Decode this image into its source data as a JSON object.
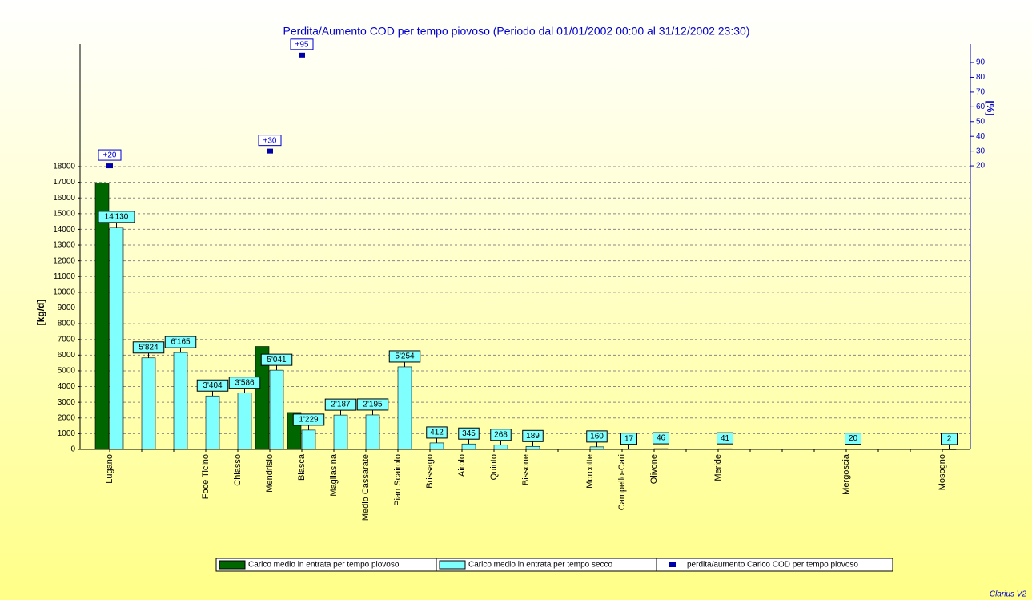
{
  "chart_data": {
    "type": "bar",
    "title": "Perdita/Aumento COD per tempo piovoso (Periodo dal 01/01/2002 00:00 al 31/12/2002 23:30)",
    "y_label": "[kg/d]",
    "y2_label": "[%]",
    "footer": "Clarius V2",
    "categories": [
      "Lugano",
      null,
      null,
      "Foce Ticino",
      "Chiasso",
      "Mendrisio",
      "Biasca",
      "Magliasina",
      "Medio Cassarate",
      "Pian Scairolo",
      "Brissago",
      "Airolo",
      "Quinto",
      "Bissone",
      null,
      "Morcotte",
      "Campello-Cari",
      "Olivone",
      null,
      "Meride",
      null,
      null,
      null,
      "Mergoscia",
      null,
      null,
      "Mosogno"
    ],
    "series": [
      {
        "name": "Carico medio in entrata per tempo piovoso",
        "color": "#006600",
        "values": [
          16950,
          null,
          null,
          null,
          null,
          6550,
          2350,
          null,
          null,
          null,
          null,
          null,
          null,
          null,
          null,
          null,
          null,
          null,
          null,
          null,
          null,
          null,
          null,
          null,
          null,
          null,
          null
        ]
      },
      {
        "name": "Carico medio in entrata per tempo secco",
        "color": "#80ffff",
        "values": [
          14130,
          5824,
          6165,
          3404,
          3586,
          5041,
          1229,
          2187,
          2195,
          5254,
          412,
          345,
          268,
          189,
          null,
          160,
          17,
          46,
          null,
          41,
          null,
          null,
          null,
          20,
          null,
          null,
          2
        ],
        "value_labels": [
          "14'130",
          "5'824",
          "6'165",
          "3'404",
          "3'586",
          "5'041",
          "1'229",
          "2'187",
          "2'195",
          "5'254",
          "412",
          "345",
          "268",
          "189",
          null,
          "160",
          "17",
          "46",
          null,
          "41",
          null,
          null,
          null,
          "20",
          null,
          null,
          "2"
        ]
      },
      {
        "name": "perdita/aumento Carico COD per tempo piovoso",
        "color": "#0000aa",
        "axis": "y2",
        "values": [
          20,
          null,
          null,
          null,
          null,
          30,
          95,
          null,
          null,
          null,
          null,
          null,
          null,
          null,
          null,
          null,
          null,
          null,
          null,
          null,
          null,
          null,
          null,
          null,
          null,
          null,
          null
        ],
        "value_labels": [
          "+20",
          null,
          null,
          null,
          null,
          "+30",
          "+95",
          null,
          null,
          null,
          null,
          null,
          null,
          null,
          null,
          null,
          null,
          null,
          null,
          null,
          null,
          null,
          null,
          null,
          null,
          null,
          null
        ]
      }
    ],
    "ylim": [
      0,
      25800
    ],
    "yticks": [
      0,
      1000,
      2000,
      3000,
      4000,
      5000,
      6000,
      7000,
      8000,
      9000,
      10000,
      11000,
      12000,
      13000,
      14000,
      15000,
      16000,
      17000,
      18000
    ],
    "y2lim": [
      -172,
      102.5
    ],
    "y2ticks": [
      20,
      30,
      40,
      50,
      60,
      70,
      80,
      90
    ],
    "grid": true
  }
}
